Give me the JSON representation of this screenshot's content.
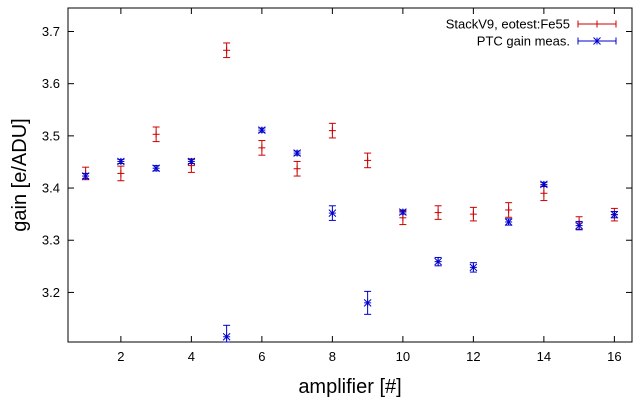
{
  "chart_data": {
    "type": "scatter",
    "title": "",
    "xlabel": "amplifier [#]",
    "ylabel": "gain [e/ADU]",
    "xlim": [
      0.5,
      16.5
    ],
    "ylim": [
      3.105,
      3.745
    ],
    "x_ticks": [
      2,
      4,
      6,
      8,
      10,
      12,
      14,
      16
    ],
    "y_ticks": [
      3.2,
      3.3,
      3.4,
      3.5,
      3.6,
      3.7
    ],
    "grid": false,
    "legend_position": "top-right",
    "series": [
      {
        "name": "StackV9, eotest:Fe55",
        "color": "#cc0000",
        "marker": "plus",
        "points": [
          {
            "x": 1,
            "y": 3.428,
            "err": 0.012
          },
          {
            "x": 2,
            "y": 3.428,
            "err": 0.014
          },
          {
            "x": 3,
            "y": 3.503,
            "err": 0.014
          },
          {
            "x": 4,
            "y": 3.443,
            "err": 0.013
          },
          {
            "x": 5,
            "y": 3.664,
            "err": 0.014
          },
          {
            "x": 6,
            "y": 3.477,
            "err": 0.014
          },
          {
            "x": 7,
            "y": 3.437,
            "err": 0.014
          },
          {
            "x": 8,
            "y": 3.51,
            "err": 0.014
          },
          {
            "x": 9,
            "y": 3.453,
            "err": 0.014
          },
          {
            "x": 10,
            "y": 3.343,
            "err": 0.013
          },
          {
            "x": 11,
            "y": 3.353,
            "err": 0.013
          },
          {
            "x": 12,
            "y": 3.35,
            "err": 0.013
          },
          {
            "x": 13,
            "y": 3.358,
            "err": 0.014
          },
          {
            "x": 14,
            "y": 3.39,
            "err": 0.014
          },
          {
            "x": 15,
            "y": 3.333,
            "err": 0.012
          },
          {
            "x": 16,
            "y": 3.349,
            "err": 0.012
          }
        ]
      },
      {
        "name": "PTC gain meas.",
        "color": "#0000cc",
        "marker": "star",
        "points": [
          {
            "x": 1,
            "y": 3.423,
            "err": 0.005
          },
          {
            "x": 2,
            "y": 3.451,
            "err": 0.004
          },
          {
            "x": 3,
            "y": 3.438,
            "err": 0.005
          },
          {
            "x": 4,
            "y": 3.451,
            "err": 0.004
          },
          {
            "x": 5,
            "y": 3.115,
            "err": 0.022
          },
          {
            "x": 6,
            "y": 3.511,
            "err": 0.004
          },
          {
            "x": 7,
            "y": 3.467,
            "err": 0.004
          },
          {
            "x": 8,
            "y": 3.352,
            "err": 0.014
          },
          {
            "x": 9,
            "y": 3.18,
            "err": 0.022
          },
          {
            "x": 10,
            "y": 3.354,
            "err": 0.004
          },
          {
            "x": 11,
            "y": 3.259,
            "err": 0.008
          },
          {
            "x": 12,
            "y": 3.248,
            "err": 0.009
          },
          {
            "x": 13,
            "y": 3.335,
            "err": 0.006
          },
          {
            "x": 14,
            "y": 3.407,
            "err": 0.004
          },
          {
            "x": 15,
            "y": 3.328,
            "err": 0.008
          },
          {
            "x": 16,
            "y": 3.349,
            "err": 0.006
          }
        ]
      }
    ]
  }
}
